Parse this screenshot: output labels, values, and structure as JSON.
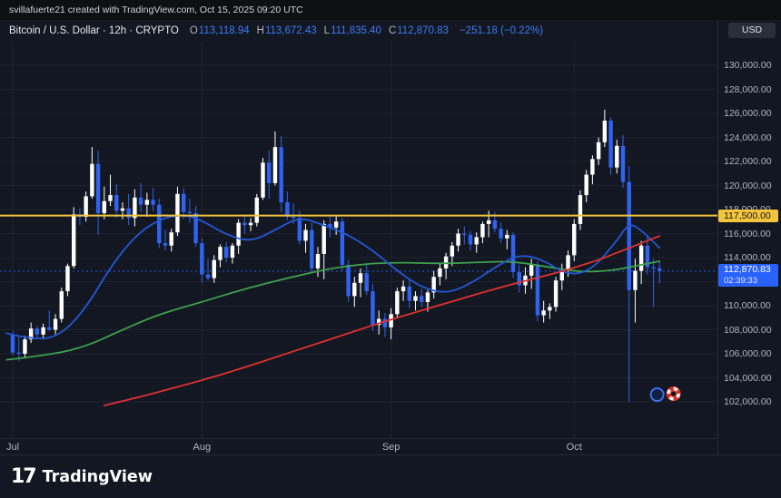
{
  "attribution": {
    "text": "svillafuerte21 created with TradingView.com, Oct 15, 2025 09:20 UTC"
  },
  "header": {
    "symbol_title": "Bitcoin / U.S. Dollar · 12h · CRYPTO",
    "ohlc": [
      {
        "label": "O",
        "value": "113,118.94"
      },
      {
        "label": "H",
        "value": "113,672.43"
      },
      {
        "label": "L",
        "value": "111,835.40"
      },
      {
        "label": "C",
        "value": "112,870.83"
      }
    ],
    "change": "−251.18 (−0.22%)",
    "currency_button": "USD"
  },
  "price_axis": {
    "tick_labels": [
      {
        "price": 130000,
        "text": "130,000.00"
      },
      {
        "price": 128000,
        "text": "128,000.00"
      },
      {
        "price": 126000,
        "text": "126,000.00"
      },
      {
        "price": 124000,
        "text": "124,000.00"
      },
      {
        "price": 122000,
        "text": "122,000.00"
      },
      {
        "price": 120000,
        "text": "120,000.00"
      },
      {
        "price": 118000,
        "text": "118,000.00"
      },
      {
        "price": 116000,
        "text": "116,000.00"
      },
      {
        "price": 114000,
        "text": "114,000.00"
      },
      {
        "price": 110000,
        "text": "110,000.00"
      },
      {
        "price": 108000,
        "text": "108,000.00"
      },
      {
        "price": 106000,
        "text": "106,000.00"
      },
      {
        "price": 104000,
        "text": "104,000.00"
      },
      {
        "price": 102000,
        "text": "102,000.00"
      }
    ],
    "grid_prices": [
      130000,
      128000,
      126000,
      124000,
      122000,
      120000,
      118000,
      116000,
      114000,
      112000,
      110000,
      108000,
      106000,
      104000,
      102000
    ],
    "yellow_label": {
      "price": 117500,
      "text": "117,500.00"
    },
    "current_label": {
      "price": 112870.83,
      "price_text": "112,870.83",
      "countdown": "02:39:33"
    }
  },
  "time_axis": {
    "months": [
      {
        "label": "Jul",
        "index": 0
      },
      {
        "label": "Aug",
        "index": 31
      },
      {
        "label": "Sep",
        "index": 62
      },
      {
        "label": "Oct",
        "index": 92
      }
    ]
  },
  "footer": {
    "logo_mark": "17",
    "logo_text": "TradingView"
  },
  "chart_data": {
    "type": "candlestick",
    "title": "Bitcoin / U.S. Dollar",
    "interval": "12h",
    "exchange": "CRYPTO",
    "ylim": [
      99000,
      132000
    ],
    "x_range": [
      "Jul 1, 2025",
      "Oct 15, 2025"
    ],
    "current": {
      "open": 113118.94,
      "high": 113672.43,
      "low": 111835.4,
      "close": 112870.83,
      "change": -251.18,
      "change_pct": -0.22
    },
    "colors": {
      "up": "#ffffff",
      "down": "#2f64f2",
      "background": "#131722",
      "grid": "rgba(197,203,221,0.07)",
      "yellow_line": "#f3c53d",
      "price_line": "#2962ff",
      "ma_green": "#3da14c",
      "ma_blue": "#2457d6",
      "ma_red": "#e03131"
    },
    "horizontal_line": {
      "price": 117500,
      "color": "#f3c53d"
    },
    "price_line": {
      "price": 112870.83,
      "style": "dotted",
      "color": "#2962ff"
    },
    "candles": [
      [
        107600,
        107900,
        105900,
        106100
      ],
      [
        106100,
        107400,
        105400,
        106000
      ],
      [
        106000,
        107500,
        105600,
        107200
      ],
      [
        107200,
        108600,
        106900,
        108100
      ],
      [
        108100,
        108300,
        107300,
        107600
      ],
      [
        107600,
        108500,
        107200,
        108200
      ],
      [
        108200,
        109600,
        107900,
        108000
      ],
      [
        108000,
        109300,
        107600,
        108900
      ],
      [
        108900,
        111500,
        108600,
        111200
      ],
      [
        111200,
        113500,
        110800,
        113300
      ],
      [
        113300,
        118200,
        113100,
        117600
      ],
      [
        117600,
        118100,
        116700,
        117400
      ],
      [
        117400,
        119500,
        117000,
        119100
      ],
      [
        119100,
        123200,
        118900,
        121800
      ],
      [
        121800,
        122900,
        115900,
        117700
      ],
      [
        117700,
        119900,
        117200,
        118700
      ],
      [
        118700,
        120900,
        118300,
        119200
      ],
      [
        119200,
        120100,
        117300,
        117900
      ],
      [
        117900,
        118600,
        117200,
        118100
      ],
      [
        118100,
        119300,
        116700,
        117300
      ],
      [
        117300,
        119700,
        116600,
        119000
      ],
      [
        119000,
        120200,
        117800,
        118400
      ],
      [
        118400,
        119400,
        117400,
        118800
      ],
      [
        118800,
        119800,
        117900,
        118400
      ],
      [
        118400,
        118900,
        114800,
        115200
      ],
      [
        115200,
        116300,
        114600,
        115000
      ],
      [
        115000,
        116400,
        114500,
        116100
      ],
      [
        116100,
        119900,
        115800,
        119300
      ],
      [
        119300,
        119800,
        117200,
        117800
      ],
      [
        117800,
        118900,
        116900,
        117700
      ],
      [
        117700,
        118300,
        114900,
        115200
      ],
      [
        115200,
        115600,
        111900,
        112600
      ],
      [
        112600,
        113900,
        112100,
        112300
      ],
      [
        112300,
        114200,
        111900,
        113800
      ],
      [
        113800,
        115100,
        113200,
        114900
      ],
      [
        114900,
        115300,
        113600,
        114000
      ],
      [
        114000,
        115200,
        113500,
        115000
      ],
      [
        115000,
        117200,
        114300,
        116900
      ],
      [
        116900,
        117600,
        116000,
        116700
      ],
      [
        116700,
        117300,
        116200,
        116900
      ],
      [
        116900,
        119300,
        116600,
        119000
      ],
      [
        119000,
        122300,
        118800,
        121900
      ],
      [
        121900,
        122900,
        118900,
        120200
      ],
      [
        120200,
        124500,
        120000,
        123200
      ],
      [
        123200,
        124100,
        117800,
        118600
      ],
      [
        118600,
        119500,
        117100,
        117400
      ],
      [
        117400,
        118500,
        116800,
        117300
      ],
      [
        117300,
        117900,
        115100,
        115400
      ],
      [
        115400,
        116800,
        114400,
        116300
      ],
      [
        116300,
        116900,
        112800,
        113100
      ],
      [
        113100,
        114900,
        112400,
        114300
      ],
      [
        114300,
        117100,
        112200,
        116800
      ],
      [
        116800,
        117400,
        115700,
        116500
      ],
      [
        116500,
        117500,
        115900,
        117000
      ],
      [
        117000,
        117300,
        112900,
        113400
      ],
      [
        113400,
        113800,
        110300,
        110800
      ],
      [
        110800,
        112400,
        109900,
        111900
      ],
      [
        111900,
        113100,
        110700,
        112700
      ],
      [
        112700,
        113400,
        110900,
        111200
      ],
      [
        111200,
        111800,
        107900,
        108400
      ],
      [
        108400,
        109600,
        107600,
        108900
      ],
      [
        108900,
        109400,
        107400,
        108200
      ],
      [
        108200,
        109800,
        107200,
        109300
      ],
      [
        109300,
        111500,
        109000,
        111200
      ],
      [
        111200,
        112100,
        110400,
        111600
      ],
      [
        111600,
        112300,
        109800,
        110400
      ],
      [
        110400,
        111200,
        109600,
        110800
      ],
      [
        110800,
        111400,
        109900,
        110300
      ],
      [
        110300,
        111300,
        109500,
        111100
      ],
      [
        111100,
        112900,
        110600,
        112400
      ],
      [
        112400,
        113500,
        111700,
        113100
      ],
      [
        113100,
        114400,
        112200,
        114100
      ],
      [
        114100,
        115300,
        113300,
        115000
      ],
      [
        115000,
        116400,
        114500,
        116000
      ],
      [
        116000,
        116600,
        115100,
        115900
      ],
      [
        115900,
        116200,
        114600,
        115100
      ],
      [
        115100,
        116100,
        114400,
        115700
      ],
      [
        115700,
        117000,
        115200,
        116800
      ],
      [
        116800,
        117900,
        115700,
        117100
      ],
      [
        117100,
        117800,
        116100,
        116400
      ],
      [
        116400,
        116900,
        115200,
        115600
      ],
      [
        115600,
        116300,
        114700,
        115900
      ],
      [
        115900,
        116100,
        112300,
        112800
      ],
      [
        112800,
        113400,
        111100,
        111700
      ],
      [
        111700,
        113200,
        111000,
        112500
      ],
      [
        112500,
        113900,
        111400,
        113400
      ],
      [
        113400,
        113700,
        108700,
        109200
      ],
      [
        109200,
        110400,
        108600,
        109600
      ],
      [
        109600,
        110200,
        108900,
        109900
      ],
      [
        109900,
        112400,
        109500,
        112100
      ],
      [
        112100,
        113500,
        111300,
        113000
      ],
      [
        113000,
        114600,
        112400,
        114200
      ],
      [
        114200,
        117200,
        113700,
        116800
      ],
      [
        116800,
        119600,
        116300,
        119200
      ],
      [
        119200,
        121300,
        118600,
        120900
      ],
      [
        120900,
        122500,
        120100,
        122200
      ],
      [
        122200,
        124000,
        121700,
        123600
      ],
      [
        123600,
        126300,
        123200,
        125400
      ],
      [
        125400,
        125700,
        120900,
        121500
      ],
      [
        121500,
        123800,
        121000,
        123300
      ],
      [
        123300,
        124200,
        119800,
        120300
      ],
      [
        120300,
        121600,
        102000,
        111300
      ],
      [
        111300,
        113900,
        108600,
        112900
      ],
      [
        112900,
        115400,
        111800,
        115000
      ],
      [
        115000,
        115900,
        112600,
        113200
      ],
      [
        113200,
        113900,
        109900,
        113100
      ],
      [
        113118.94,
        113672.43,
        111835.4,
        112870.83
      ]
    ],
    "ma_lines": [
      {
        "name": "ma-green",
        "color": "#3da14c",
        "points": [
          [
            -1,
            105500
          ],
          [
            6,
            105900
          ],
          [
            12,
            106600
          ],
          [
            18,
            108000
          ],
          [
            24,
            109300
          ],
          [
            31,
            110300
          ],
          [
            38,
            111400
          ],
          [
            45,
            112300
          ],
          [
            52,
            113100
          ],
          [
            58,
            113500
          ],
          [
            64,
            113600
          ],
          [
            70,
            113500
          ],
          [
            76,
            113600
          ],
          [
            82,
            113700
          ],
          [
            88,
            113200
          ],
          [
            93,
            112800
          ],
          [
            98,
            112900
          ],
          [
            102,
            113300
          ],
          [
            106,
            113700
          ]
        ]
      },
      {
        "name": "ma-blue",
        "color": "#2457d6",
        "points": [
          [
            -1,
            107700
          ],
          [
            4,
            107100
          ],
          [
            8,
            107600
          ],
          [
            12,
            109800
          ],
          [
            16,
            113200
          ],
          [
            20,
            115800
          ],
          [
            24,
            117200
          ],
          [
            28,
            117600
          ],
          [
            31,
            117100
          ],
          [
            35,
            115900
          ],
          [
            39,
            115300
          ],
          [
            43,
            116300
          ],
          [
            47,
            117400
          ],
          [
            51,
            116700
          ],
          [
            55,
            115900
          ],
          [
            59,
            114600
          ],
          [
            63,
            112900
          ],
          [
            67,
            111500
          ],
          [
            71,
            111000
          ],
          [
            75,
            111800
          ],
          [
            79,
            113200
          ],
          [
            83,
            114300
          ],
          [
            87,
            113800
          ],
          [
            91,
            112500
          ],
          [
            95,
            113000
          ],
          [
            99,
            115400
          ],
          [
            101,
            116900
          ],
          [
            103,
            116300
          ],
          [
            106,
            114800
          ]
        ]
      },
      {
        "name": "ma-red",
        "color": "#e03131",
        "points": [
          [
            15,
            101700
          ],
          [
            20,
            102300
          ],
          [
            26,
            103100
          ],
          [
            31,
            103800
          ],
          [
            37,
            104700
          ],
          [
            43,
            105700
          ],
          [
            49,
            106700
          ],
          [
            55,
            107700
          ],
          [
            61,
            108700
          ],
          [
            67,
            109600
          ],
          [
            73,
            110500
          ],
          [
            79,
            111400
          ],
          [
            85,
            112200
          ],
          [
            91,
            113000
          ],
          [
            96,
            113800
          ],
          [
            100,
            114600
          ],
          [
            103,
            115200
          ],
          [
            106,
            115800
          ]
        ]
      }
    ],
    "stickers": {
      "position": {
        "candle_index": 105.6,
        "price": 102600
      },
      "items": [
        {
          "name": "blue-circle-emoji"
        },
        {
          "name": "lifebuoy-emoji"
        }
      ]
    }
  }
}
